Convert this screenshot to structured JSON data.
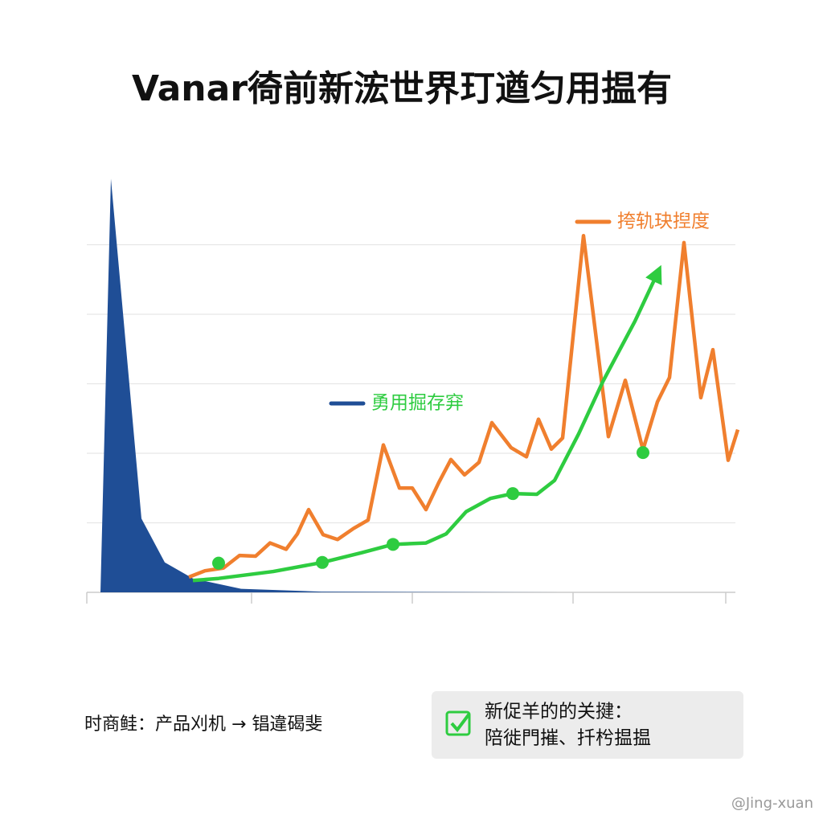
{
  "chart_data": {
    "type": "line",
    "title": "Vanar徛前新浤世界玎遒匀用揾有",
    "xlim": [
      0,
      4.05
    ],
    "xticks": [
      1,
      2,
      3,
      4
    ],
    "ylim": [
      0,
      6
    ],
    "yticks": [
      1,
      2,
      3,
      4,
      5
    ],
    "grid": true,
    "series": [
      {
        "name": "勇用掘存穽",
        "color": "#1f4e96",
        "kind": "area",
        "x": [
          0.06,
          0.125,
          0.315,
          0.46,
          0.635,
          0.935,
          1.435,
          2.935
        ],
        "values": [
          0,
          5.95,
          1.06,
          0.43,
          0.2,
          0.05,
          0.01,
          0
        ]
      },
      {
        "name": "挎轨玦揑度",
        "color": "#f07f2e",
        "kind": "line",
        "x": [
          0.61,
          0.71,
          0.825,
          0.925,
          1.025,
          1.115,
          1.215,
          1.285,
          1.355,
          1.445,
          1.535,
          1.635,
          1.725,
          1.82,
          1.92,
          2.0,
          2.085,
          2.165,
          2.24,
          2.325,
          2.415,
          2.495,
          2.615,
          2.71,
          2.785,
          2.865,
          2.935,
          3.065,
          3.22,
          3.325,
          3.435,
          3.525,
          3.6,
          3.69,
          3.795,
          3.87,
          3.965,
          4.025
        ],
        "values": [
          0.22,
          0.31,
          0.35,
          0.53,
          0.52,
          0.71,
          0.62,
          0.84,
          1.19,
          0.83,
          0.76,
          0.92,
          1.04,
          2.12,
          1.5,
          1.5,
          1.19,
          1.58,
          1.91,
          1.69,
          1.87,
          2.44,
          2.08,
          1.95,
          2.49,
          2.06,
          2.22,
          5.13,
          2.24,
          3.05,
          2.05,
          2.74,
          3.09,
          5.03,
          2.8,
          3.49,
          1.9,
          2.34
        ]
      },
      {
        "color": "#2ecc40",
        "kind": "arrow",
        "x": [
          0.635,
          0.795,
          1.135,
          1.44,
          1.685,
          1.88,
          2.085,
          2.21,
          2.335,
          2.485,
          2.625,
          2.775,
          2.885,
          3.035,
          3.185,
          3.385,
          3.525
        ],
        "values": [
          0.17,
          0.2,
          0.3,
          0.43,
          0.57,
          0.69,
          0.71,
          0.84,
          1.16,
          1.35,
          1.42,
          1.41,
          1.61,
          2.28,
          3.03,
          3.9,
          4.59
        ],
        "markers": {
          "x": [
            0.795,
            1.44,
            1.88,
            2.625,
            3.435
          ],
          "values": [
            0.42,
            0.43,
            0.69,
            1.42,
            2.01
          ]
        }
      }
    ]
  },
  "footer": {
    "note": "时商鲑：产品刈机 → 锠違碣斐",
    "box_lines": [
      "新促羊的的关揵：",
      "陪徙門摧、扦枍揾揾"
    ]
  },
  "watermark": "@Jing-xuan"
}
